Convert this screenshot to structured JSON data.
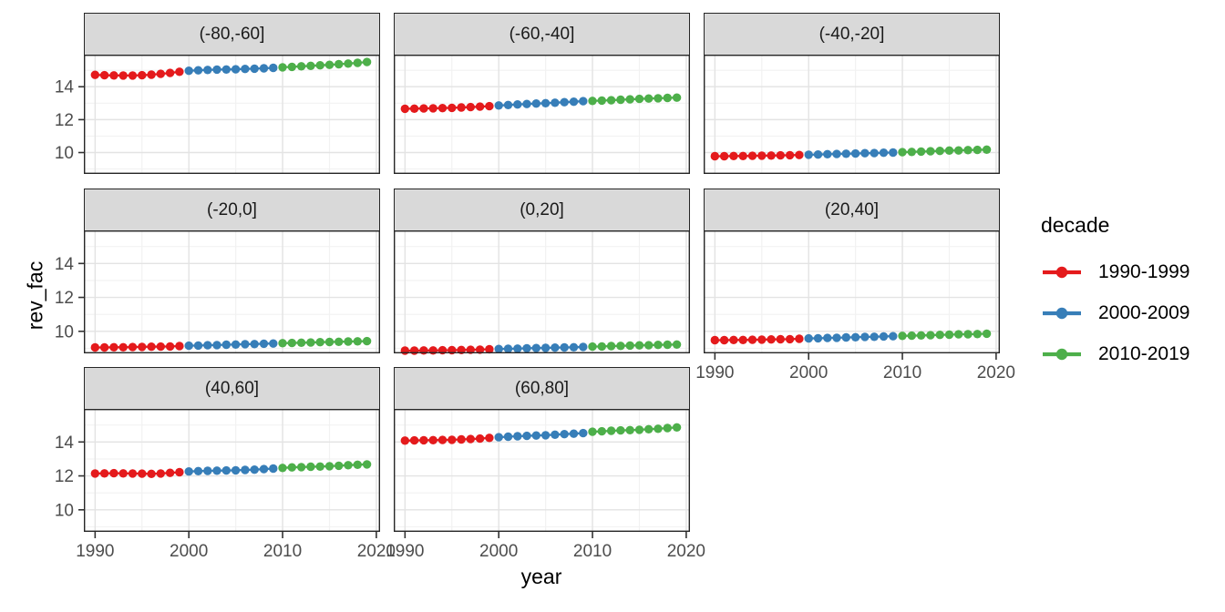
{
  "figure": {
    "xlabel": "year",
    "ylabel": "rev_fac"
  },
  "legend": {
    "title": "decade",
    "entries": [
      {
        "label": "1990-1999",
        "color": "#E41A1C"
      },
      {
        "label": "2000-2009",
        "color": "#377EB8"
      },
      {
        "label": "2010-2019",
        "color": "#4DAF4A"
      }
    ]
  },
  "chart_data": {
    "type": "scatter",
    "title": "",
    "xlabel": "year",
    "ylabel": "rev_fac",
    "grid": true,
    "legend_position": "right",
    "series_by": "decade",
    "x_ticks": [
      1990,
      2000,
      2010,
      2020
    ],
    "y_ticks": [
      14,
      12,
      10
    ],
    "x_minor_ticks": [
      1995,
      2005,
      2015
    ],
    "y_minor_ticks": [
      9,
      11,
      13,
      15
    ],
    "x_domain": [
      1988.8,
      2020.4
    ],
    "y_domain": [
      8.7,
      15.95
    ],
    "years": [
      1990,
      1991,
      1992,
      1993,
      1994,
      1995,
      1996,
      1997,
      1998,
      1999,
      2000,
      2001,
      2002,
      2003,
      2004,
      2005,
      2006,
      2007,
      2008,
      2009,
      2010,
      2011,
      2012,
      2013,
      2014,
      2015,
      2016,
      2017,
      2018,
      2019
    ],
    "decade_breaks": [
      {
        "name": "1990-1999",
        "from": 1990,
        "to": 1999,
        "color": "#E41A1C"
      },
      {
        "name": "2000-2009",
        "from": 2000,
        "to": 2009,
        "color": "#377EB8"
      },
      {
        "name": "2010-2019",
        "from": 2010,
        "to": 2019,
        "color": "#4DAF4A"
      }
    ],
    "facets": [
      {
        "label": "(-80,-60]",
        "values": [
          14.72,
          14.7,
          14.69,
          14.68,
          14.68,
          14.7,
          14.73,
          14.78,
          14.84,
          14.91,
          14.97,
          15.0,
          15.02,
          15.04,
          15.05,
          15.06,
          15.08,
          15.1,
          15.12,
          15.15,
          15.18,
          15.21,
          15.24,
          15.27,
          15.3,
          15.33,
          15.37,
          15.41,
          15.45,
          15.5
        ]
      },
      {
        "label": "(-60,-40]",
        "values": [
          12.66,
          12.67,
          12.68,
          12.69,
          12.7,
          12.72,
          12.74,
          12.76,
          12.79,
          12.82,
          12.86,
          12.89,
          12.92,
          12.95,
          12.98,
          13.0,
          13.03,
          13.06,
          13.09,
          13.12,
          13.14,
          13.16,
          13.18,
          13.21,
          13.23,
          13.26,
          13.28,
          13.3,
          13.32,
          13.34
        ]
      },
      {
        "label": "(-40,-20]",
        "values": [
          9.78,
          9.78,
          9.79,
          9.79,
          9.8,
          9.81,
          9.82,
          9.83,
          9.84,
          9.85,
          9.87,
          9.88,
          9.9,
          9.91,
          9.93,
          9.94,
          9.96,
          9.97,
          9.99,
          10.0,
          10.02,
          10.04,
          10.06,
          10.08,
          10.1,
          10.12,
          10.13,
          10.15,
          10.16,
          10.18
        ]
      },
      {
        "label": "(-20,0]",
        "values": [
          9.05,
          9.05,
          9.06,
          9.06,
          9.07,
          9.08,
          9.09,
          9.1,
          9.11,
          9.13,
          9.15,
          9.16,
          9.18,
          9.19,
          9.21,
          9.22,
          9.24,
          9.25,
          9.27,
          9.28,
          9.3,
          9.31,
          9.33,
          9.34,
          9.36,
          9.37,
          9.38,
          9.4,
          9.41,
          9.42
        ]
      },
      {
        "label": "(0,20]",
        "values": [
          8.86,
          8.86,
          8.87,
          8.87,
          8.88,
          8.89,
          8.9,
          8.91,
          8.92,
          8.94,
          8.96,
          8.97,
          8.98,
          9.0,
          9.01,
          9.02,
          9.04,
          9.05,
          9.06,
          9.08,
          9.1,
          9.11,
          9.13,
          9.14,
          9.16,
          9.17,
          9.18,
          9.2,
          9.21,
          9.22
        ]
      },
      {
        "label": "(20,40]",
        "values": [
          9.48,
          9.48,
          9.49,
          9.49,
          9.5,
          9.51,
          9.52,
          9.53,
          9.54,
          9.56,
          9.58,
          9.59,
          9.61,
          9.62,
          9.64,
          9.65,
          9.67,
          9.68,
          9.7,
          9.71,
          9.73,
          9.74,
          9.76,
          9.77,
          9.79,
          9.8,
          9.82,
          9.83,
          9.84,
          9.86
        ]
      },
      {
        "label": "(40,60]",
        "values": [
          12.14,
          12.15,
          12.16,
          12.15,
          12.14,
          12.13,
          12.12,
          12.14,
          12.18,
          12.22,
          12.26,
          12.28,
          12.3,
          12.31,
          12.32,
          12.33,
          12.35,
          12.37,
          12.4,
          12.43,
          12.47,
          12.5,
          12.52,
          12.54,
          12.55,
          12.57,
          12.6,
          12.63,
          12.66,
          12.68
        ]
      },
      {
        "label": "(60,80]",
        "values": [
          14.08,
          14.09,
          14.1,
          14.11,
          14.12,
          14.13,
          14.15,
          14.17,
          14.2,
          14.24,
          14.28,
          14.31,
          14.34,
          14.36,
          14.38,
          14.4,
          14.43,
          14.46,
          14.49,
          14.52,
          14.6,
          14.63,
          14.66,
          14.68,
          14.7,
          14.72,
          14.75,
          14.78,
          14.82,
          14.86
        ]
      }
    ]
  }
}
